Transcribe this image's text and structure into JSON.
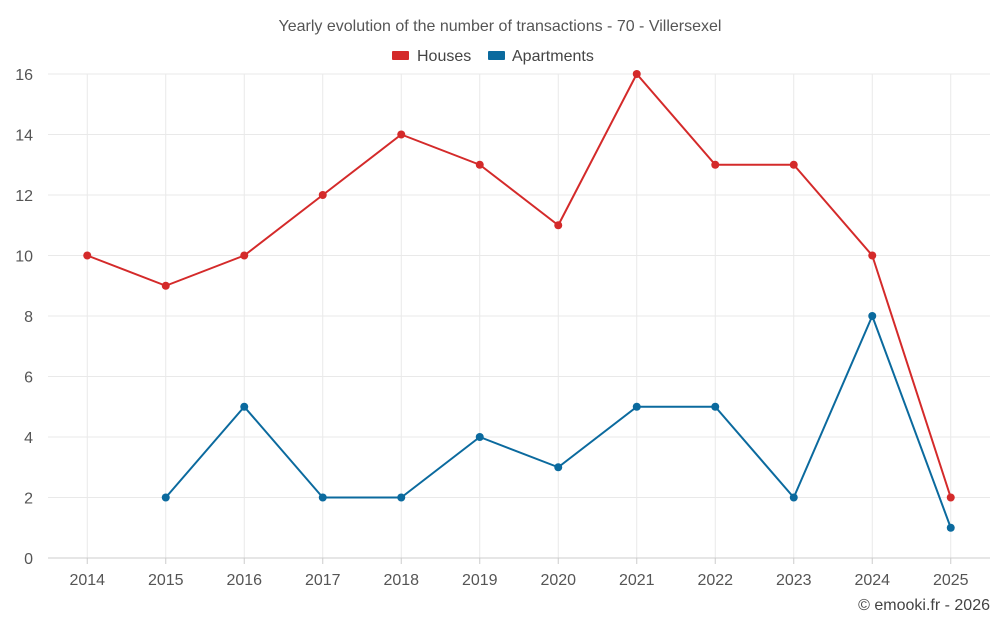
{
  "chart_data": {
    "type": "line",
    "title": "Yearly evolution of the number of transactions - 70 - Villersexel",
    "xlabel": "",
    "ylabel": "",
    "categories": [
      "2014",
      "2015",
      "2016",
      "2017",
      "2018",
      "2019",
      "2020",
      "2021",
      "2022",
      "2023",
      "2024",
      "2025"
    ],
    "ylim": [
      0,
      16
    ],
    "yticks": [
      0,
      2,
      4,
      6,
      8,
      10,
      12,
      14,
      16
    ],
    "grid": true,
    "legend_position": "top-center",
    "series": [
      {
        "name": "Houses",
        "color": "#d42a2a",
        "values": [
          10,
          9,
          10,
          12,
          14,
          13,
          11,
          16,
          13,
          13,
          10,
          2
        ]
      },
      {
        "name": "Apartments",
        "color": "#0b6a9e",
        "values": [
          null,
          2,
          5,
          2,
          2,
          4,
          3,
          5,
          5,
          2,
          8,
          1
        ]
      }
    ]
  },
  "credit": "© emooki.fr - 2026"
}
